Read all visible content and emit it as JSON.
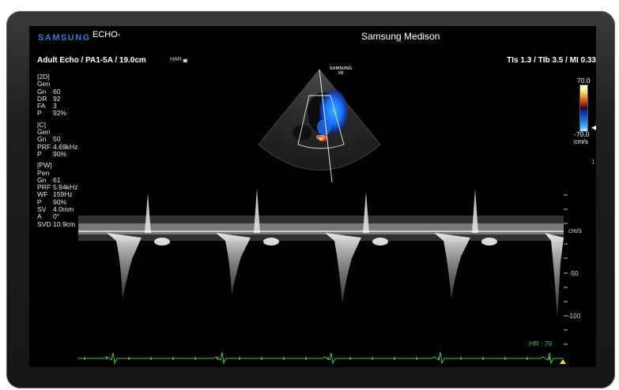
{
  "header": {
    "brand": "SAMSUNG",
    "mode": "ECHO-",
    "vendor": "Samsung Medison"
  },
  "probe_line": {
    "text": "Adult Echo / PA1-5A / 19.0cm",
    "icon_text": "HAR ▄",
    "indices": "TIs  1.3 / TIb  3.5 / MI  0.33"
  },
  "params": {
    "two_d": {
      "title": "[2D]",
      "preset": "Gen",
      "rows": [
        {
          "k": "Gn",
          "v": "60"
        },
        {
          "k": "DR",
          "v": "92"
        },
        {
          "k": "FA",
          "v": "3"
        },
        {
          "k": "P",
          "v": "92%"
        }
      ]
    },
    "color": {
      "title": "[C]",
      "preset": "Gen",
      "rows": [
        {
          "k": "Gn",
          "v": "50"
        },
        {
          "k": "PRF",
          "v": "4.69kHz"
        },
        {
          "k": "P",
          "v": "90%"
        }
      ]
    },
    "pw": {
      "title": "[PW]",
      "preset": "Pen",
      "rows": [
        {
          "k": "Gn",
          "v": "61"
        },
        {
          "k": "PRF",
          "v": "5.94kHz"
        },
        {
          "k": "WF",
          "v": "159Hz"
        },
        {
          "k": "P",
          "v": "90%"
        },
        {
          "k": "SV",
          "v": "4.0mm"
        },
        {
          "k": "A",
          "v": "0°"
        },
        {
          "k": "SVD",
          "v": "10.9cm"
        }
      ]
    }
  },
  "color_bar": {
    "max": "70.0",
    "min": "-70.0",
    "unit": "cm/s",
    "marker": "◀"
  },
  "side_marker": "1",
  "sector_logo": {
    "line1": "SAMSUNG",
    "line2": "V6"
  },
  "doppler": {
    "unit": "cm/s",
    "scale_labels": [
      "-50",
      "-100"
    ],
    "cycles": 4
  },
  "ecg": {
    "hr": "HR : 70"
  },
  "colors": {
    "brand": "#2e7bd6",
    "ecg": "#27d04a",
    "baseline": "#ffffff",
    "flow_blue": "#1a6fff",
    "flow_red": "#e0401a"
  }
}
